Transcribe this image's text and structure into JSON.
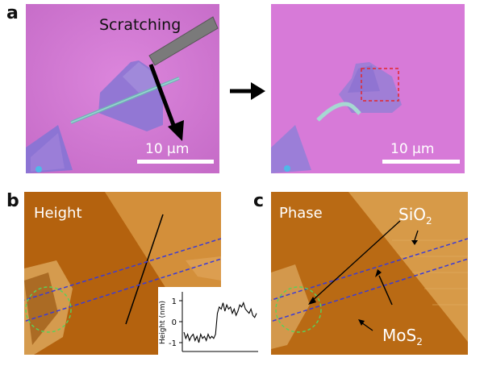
{
  "panels": {
    "a": {
      "letter": "a",
      "before_label": "Scratching",
      "scalebar_left": "10 µm",
      "scalebar_right": "10 µm"
    },
    "b": {
      "letter": "b",
      "title": "Height",
      "inset": {
        "ylabel": "Height (nm)",
        "ticks": [
          "1",
          "0",
          "-1"
        ]
      }
    },
    "c": {
      "letter": "c",
      "title": "Phase",
      "label_sio2": "SiO",
      "label_sio2_sub": "2",
      "label_mos2": "MoS",
      "label_mos2_sub": "2"
    }
  },
  "colors": {
    "optical_bg": "#d77ad8",
    "flake": "#8f78d6",
    "afm_dark": "#b4620e",
    "afm_light": "#cf8a32",
    "box_blue": "#3b3bd6",
    "circle_green": "#5ad05a",
    "red_box": "#e3262c"
  },
  "chart_data": {
    "type": "line",
    "title": "",
    "xlabel": "",
    "ylabel": "Height (nm)",
    "ylim": [
      -1.3,
      1.3
    ],
    "yticks": [
      1,
      0,
      -1
    ],
    "x": [
      0,
      1,
      2,
      3,
      4,
      5,
      6,
      7,
      8,
      9,
      10,
      11,
      12,
      13,
      14,
      15,
      16,
      17,
      18,
      19,
      20,
      21,
      22,
      23,
      24,
      25,
      26,
      27,
      28,
      29,
      30,
      31,
      32,
      33,
      34,
      35,
      36,
      37,
      38,
      39
    ],
    "values": [
      -0.5,
      -0.8,
      -0.6,
      -0.9,
      -0.7,
      -0.6,
      -0.9,
      -0.7,
      -1.0,
      -0.6,
      -0.8,
      -0.7,
      -0.9,
      -0.6,
      -0.8,
      -0.7,
      -0.8,
      -0.6,
      0.4,
      0.7,
      0.6,
      0.9,
      0.5,
      0.8,
      0.6,
      0.7,
      0.4,
      0.6,
      0.3,
      0.5,
      0.8,
      0.7,
      0.9,
      0.6,
      0.5,
      0.4,
      0.6,
      0.3,
      0.2,
      0.4
    ]
  }
}
